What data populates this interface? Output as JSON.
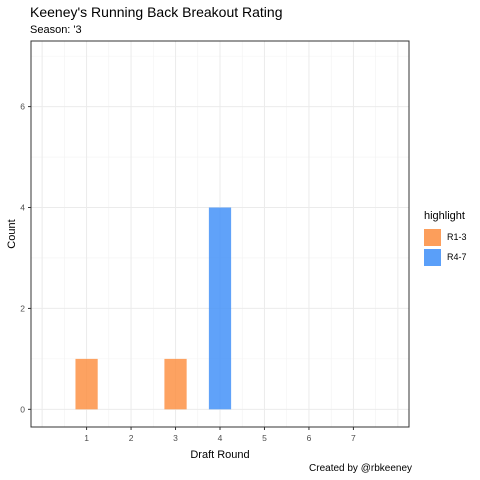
{
  "title": "Keeney's Running Back Breakout Rating",
  "subtitle": "Season: '3",
  "caption": "Created by @rbkeeney",
  "chart_data": {
    "type": "bar",
    "xlabel": "Draft Round",
    "ylabel": "Count",
    "x_ticks": [
      1,
      2,
      3,
      4,
      5,
      6,
      7
    ],
    "y_ticks": [
      0,
      2,
      4,
      6
    ],
    "xlim": [
      -0.25,
      8.25
    ],
    "ylim": [
      -0.35,
      7.3
    ],
    "grid": true,
    "legend": {
      "title": "highlight",
      "position": "right",
      "entries": [
        {
          "label": "R1-3",
          "color": "#fc8d3e"
        },
        {
          "label": "R4-7",
          "color": "#3d8ef8"
        }
      ]
    },
    "bars": [
      {
        "x": 1,
        "y": 1,
        "group": "R1-3"
      },
      {
        "x": 3,
        "y": 1,
        "group": "R1-3"
      },
      {
        "x": 4,
        "y": 4,
        "group": "R4-7"
      }
    ]
  }
}
